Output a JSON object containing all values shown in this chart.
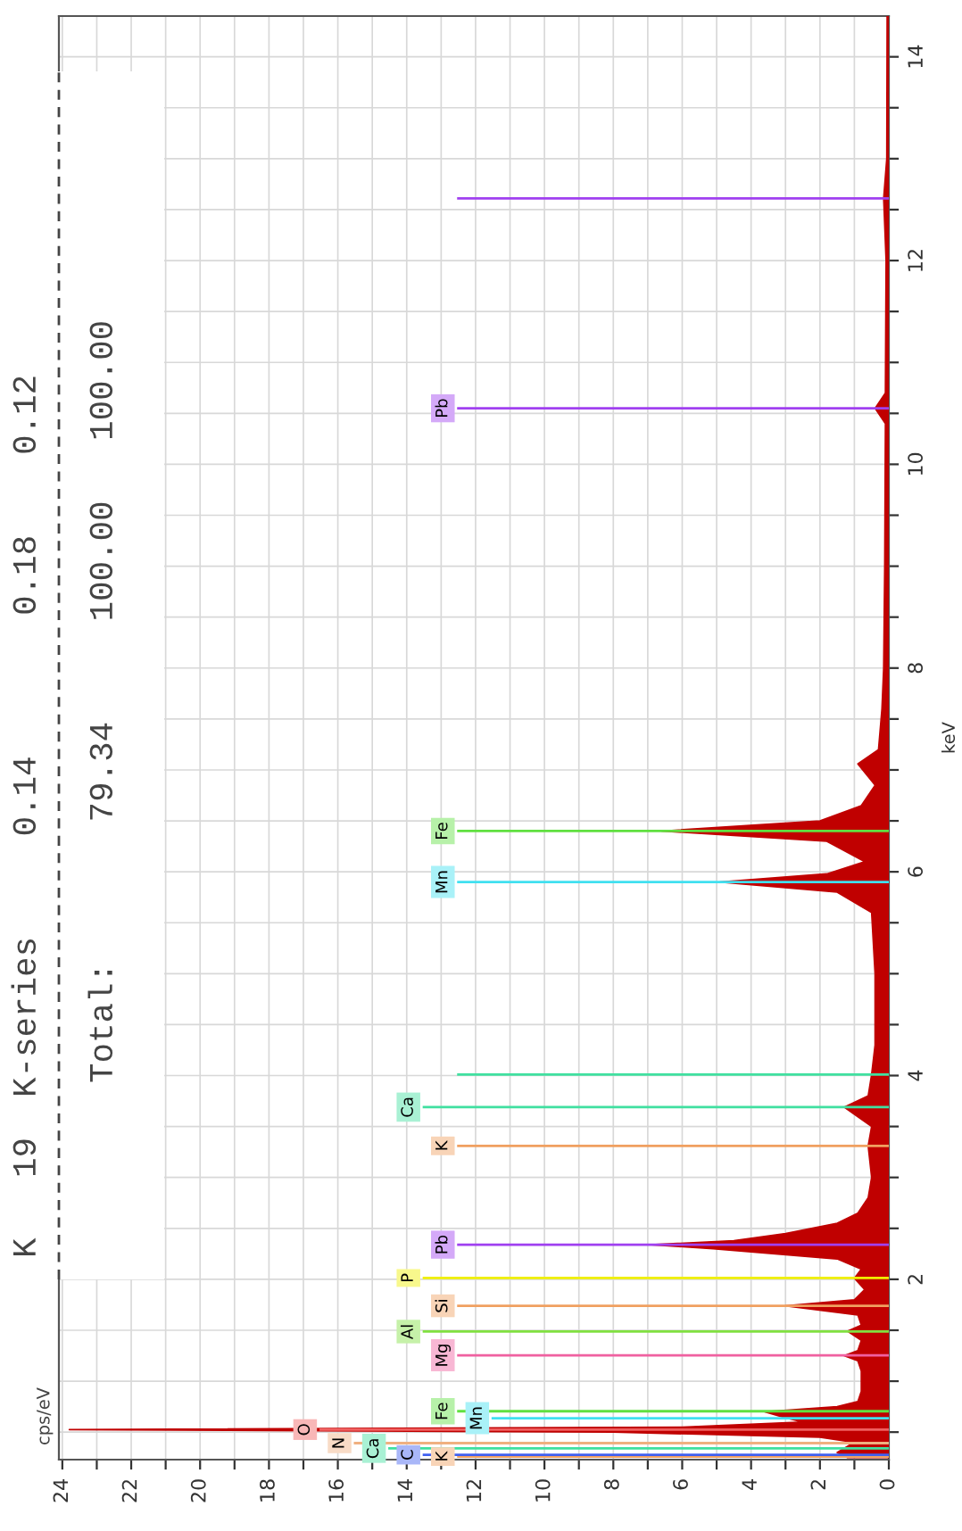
{
  "chart_data": {
    "type": "area",
    "orientation": "horizontal",
    "color": "#c00000",
    "ylabel": "keV",
    "x": [
      0.25,
      0.3,
      0.4,
      0.45,
      0.5,
      0.525,
      0.55,
      0.6,
      0.64,
      0.7,
      0.75,
      0.8,
      0.9,
      1.0,
      1.1,
      1.2,
      1.25,
      1.3,
      1.4,
      1.49,
      1.55,
      1.65,
      1.74,
      1.8,
      1.9,
      2.01,
      2.1,
      2.2,
      2.3,
      2.34,
      2.38,
      2.45,
      2.55,
      2.65,
      2.8,
      3.0,
      3.31,
      3.5,
      3.69,
      3.8,
      4.01,
      4.3,
      5.0,
      5.6,
      5.8,
      5.9,
      5.98,
      6.1,
      6.3,
      6.4,
      6.5,
      6.65,
      6.85,
      7.06,
      7.2,
      7.6,
      8.0,
      9.0,
      10.4,
      10.55,
      10.7,
      12.0,
      12.61,
      13.0,
      14.4
    ],
    "values": [
      1.2,
      1.5,
      1.0,
      2.0,
      8,
      23.8,
      6,
      2.5,
      3.0,
      3.6,
      1.5,
      0.9,
      0.8,
      0.8,
      0.8,
      0.9,
      1.3,
      0.9,
      0.8,
      1.2,
      0.8,
      0.9,
      3.0,
      1.0,
      0.7,
      1.0,
      0.8,
      1.5,
      5.1,
      6.9,
      4.5,
      3.0,
      1.5,
      0.9,
      0.6,
      0.5,
      0.6,
      0.5,
      1.3,
      0.6,
      0.5,
      0.4,
      0.4,
      0.5,
      1.5,
      4.9,
      1.8,
      0.7,
      1.8,
      6.6,
      2.0,
      0.8,
      0.4,
      0.9,
      0.3,
      0.2,
      0.15,
      0.12,
      0.1,
      0.4,
      0.1,
      0.08,
      0.15,
      0.06,
      0.05
    ],
    "xlim": [
      24.1,
      0
    ],
    "xticks": [
      0,
      {
        "value": 1,
        "label": null
      },
      2,
      {
        "value": 3,
        "label": null
      },
      4,
      {
        "value": 5,
        "label": null
      },
      6,
      {
        "value": 7,
        "label": null
      },
      8,
      {
        "value": 9,
        "label": null
      },
      10,
      {
        "value": 11,
        "label": null
      },
      12,
      {
        "value": 13,
        "label": null
      },
      14,
      {
        "value": 15,
        "label": null
      },
      16,
      {
        "value": 17,
        "label": null
      },
      18,
      {
        "value": 19,
        "label": null
      },
      20,
      {
        "value": 21,
        "label": null
      },
      22,
      {
        "value": 23,
        "label": null
      },
      24
    ],
    "ylim": [
      0.23,
      14.4
    ],
    "yticks": [
      {
        "value": 0.5,
        "label": null
      },
      {
        "value": 1,
        "label": null
      },
      {
        "value": 1.5,
        "label": null
      },
      2,
      {
        "value": 2.5,
        "label": null
      },
      {
        "value": 3,
        "label": null
      },
      {
        "value": 3.5,
        "label": null
      },
      4,
      {
        "value": 4.5,
        "label": null
      },
      {
        "value": 5,
        "label": null
      },
      {
        "value": 5.5,
        "label": null
      },
      6,
      {
        "value": 6.5,
        "label": null
      },
      {
        "value": 7,
        "label": null
      },
      {
        "value": 7.5,
        "label": null
      },
      8,
      {
        "value": 8.5,
        "label": null
      },
      {
        "value": 9,
        "label": null
      },
      {
        "value": 9.5,
        "label": null
      },
      10,
      {
        "value": 10.5,
        "label": null
      },
      {
        "value": 11,
        "label": null
      },
      {
        "value": 11.5,
        "label": null
      },
      12,
      {
        "value": 12.5,
        "label": null
      },
      {
        "value": 13,
        "label": null
      },
      {
        "value": 13.5,
        "label": null
      },
      14
    ],
    "grid": true,
    "ref_lines": [
      {
        "axis": "y",
        "value": 0.26,
        "label": "K",
        "color": "#f0a060"
      },
      {
        "axis": "y",
        "value": 0.277,
        "label": "C",
        "color": "#4060f0"
      },
      {
        "axis": "y",
        "value": 0.341,
        "label": "Ca",
        "color": "#40e0a0"
      },
      {
        "axis": "y",
        "value": 0.392,
        "label": "N",
        "color": "#f0b080"
      },
      {
        "axis": "y",
        "value": 0.525,
        "label": "O",
        "color": "#f06060"
      },
      {
        "axis": "y",
        "value": 0.637,
        "label": "Mn",
        "color": "#40e0f0"
      },
      {
        "axis": "y",
        "value": 0.705,
        "label": "Fe",
        "color": "#60e040"
      },
      {
        "axis": "y",
        "value": 1.254,
        "label": "Mg",
        "color": "#f060a0"
      },
      {
        "axis": "y",
        "value": 1.487,
        "label": "Al",
        "color": "#80e040"
      },
      {
        "axis": "y",
        "value": 1.74,
        "label": "Si",
        "color": "#f0a060"
      },
      {
        "axis": "y",
        "value": 2.013,
        "label": "P",
        "color": "#f0f000"
      },
      {
        "axis": "y",
        "value": 2.34,
        "label": "Pb",
        "color": "#a040f0"
      },
      {
        "axis": "y",
        "value": 3.31,
        "label": "K",
        "color": "#f0a060"
      },
      {
        "axis": "y",
        "value": 3.69,
        "label": "Ca",
        "color": "#40e0a0"
      },
      {
        "axis": "y",
        "value": 4.01,
        "color": "#40e0a0"
      },
      {
        "axis": "y",
        "value": 5.9,
        "label": "Mn",
        "color": "#40e0f0"
      },
      {
        "axis": "y",
        "value": 6.4,
        "label": "Fe",
        "color": "#60e040"
      },
      {
        "axis": "y",
        "value": 10.55,
        "label": "Pb",
        "color": "#a040f0"
      },
      {
        "axis": "y",
        "value": 12.61,
        "color": "#a040f0"
      }
    ],
    "annotations": [
      "K   19  K-series     0.14       0.18    0.12",
      "Total:       79.34     100.00   100.00",
      "cps/eV"
    ]
  }
}
